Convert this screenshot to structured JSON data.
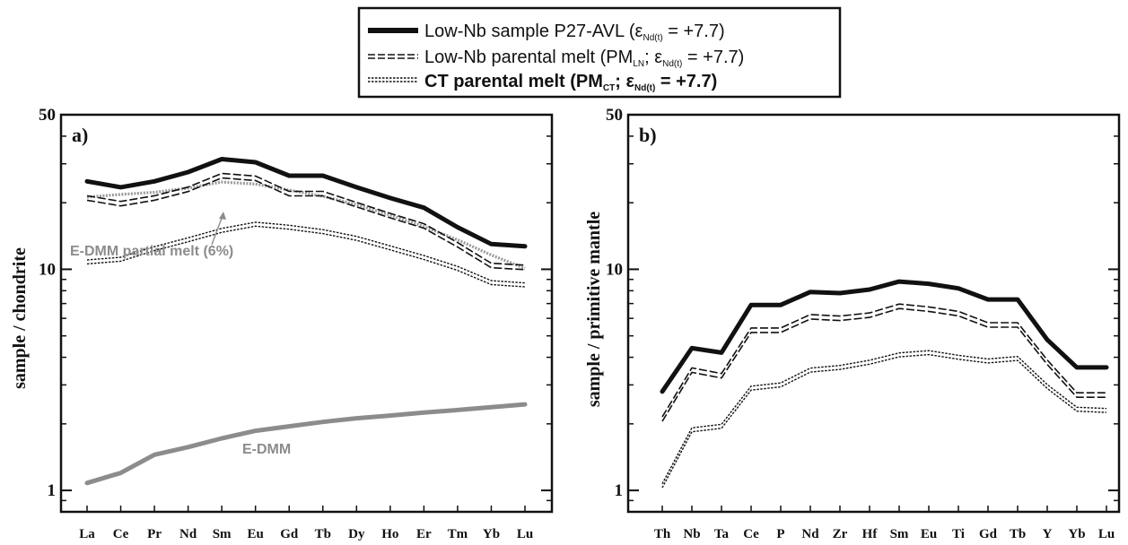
{
  "legend": {
    "entries": [
      {
        "series": "p27",
        "pre": "Low-Nb sample P27-AVL (ε",
        "sub1": "Nd(t)",
        "post": " = +7.7)",
        "bold": false
      },
      {
        "series": "pm_ln",
        "pre": "Low-Nb parental melt (PM",
        "sub1": "LN",
        "mid": "; ε",
        "sub2": "Nd(t)",
        "post": " = +7.7)",
        "bold": false
      },
      {
        "series": "pm_ct",
        "pre": "CT parental melt (PM",
        "sub1": "CT",
        "mid": "; ε",
        "sub2": "Nd(t)",
        "post": " = +7.7)",
        "bold": true
      }
    ]
  },
  "chart_data": [
    {
      "panel": "a)",
      "type": "line",
      "ylabel": "sample / chondrite",
      "yscale": "log",
      "ylim": [
        0.8,
        50
      ],
      "ytick_labels": [
        "1",
        "10",
        "50"
      ],
      "ytick_values": [
        1,
        10,
        50
      ],
      "categories": [
        "La",
        "Ce",
        "Pr",
        "Nd",
        "Sm",
        "Eu",
        "Gd",
        "Tb",
        "Dy",
        "Ho",
        "Er",
        "Tm",
        "Yb",
        "Lu"
      ],
      "series": [
        {
          "key": "p27",
          "style": "solid-black",
          "values": [
            25.0,
            23.5,
            25.0,
            27.5,
            31.5,
            30.5,
            26.5,
            26.5,
            23.5,
            21.0,
            19.0,
            15.5,
            13.0,
            12.7
          ]
        },
        {
          "key": "pm_ln",
          "style": "double-dashed",
          "values": [
            21.0,
            19.8,
            21.0,
            23.0,
            26.5,
            25.8,
            22.0,
            22.0,
            19.6,
            17.5,
            15.7,
            12.9,
            10.4,
            10.2
          ]
        },
        {
          "key": "pm_ct",
          "style": "double-dotted",
          "values": [
            10.8,
            11.1,
            12.4,
            13.6,
            15.0,
            16.0,
            15.5,
            14.8,
            13.8,
            12.5,
            11.3,
            10.1,
            8.7,
            8.5
          ]
        },
        {
          "key": "edmm_melt",
          "style": "gray-dotted",
          "label": "E-DMM partial melt (6%)",
          "values": [
            21.2,
            21.8,
            22.3,
            23.3,
            24.8,
            24.3,
            22.8,
            21.4,
            19.6,
            17.6,
            15.6,
            13.6,
            11.6,
            10.1
          ]
        },
        {
          "key": "edmm",
          "style": "gray-solid",
          "label": "E-DMM",
          "values": [
            1.08,
            1.2,
            1.45,
            1.57,
            1.72,
            1.86,
            1.95,
            2.04,
            2.12,
            2.18,
            2.25,
            2.31,
            2.38,
            2.45
          ]
        }
      ]
    },
    {
      "panel": "b)",
      "type": "line",
      "ylabel": "sample / primitive mantle",
      "yscale": "log",
      "ylim": [
        0.8,
        50
      ],
      "ytick_labels": [
        "1",
        "10",
        "50"
      ],
      "ytick_values": [
        1,
        10,
        50
      ],
      "categories": [
        "Th",
        "Nb",
        "Ta",
        "Ce",
        "P",
        "Nd",
        "Zr",
        "Hf",
        "Sm",
        "Eu",
        "Ti",
        "Gd",
        "Tb",
        "Y",
        "Yb",
        "Lu"
      ],
      "series": [
        {
          "key": "p27",
          "style": "solid-black",
          "values": [
            2.8,
            4.4,
            4.2,
            6.9,
            6.9,
            7.9,
            7.8,
            8.1,
            8.8,
            8.6,
            8.2,
            7.3,
            7.3,
            4.8,
            3.6,
            3.6
          ]
        },
        {
          "key": "pm_ln",
          "style": "double-dashed",
          "values": [
            2.1,
            3.5,
            3.3,
            5.3,
            5.3,
            6.1,
            6.0,
            6.2,
            6.8,
            6.6,
            6.3,
            5.6,
            5.6,
            3.8,
            2.7,
            2.7
          ]
        },
        {
          "key": "pm_ct",
          "style": "double-dotted",
          "values": [
            1.05,
            1.88,
            1.95,
            2.9,
            3.0,
            3.5,
            3.6,
            3.8,
            4.1,
            4.2,
            4.0,
            3.85,
            3.95,
            2.95,
            2.33,
            2.3
          ]
        }
      ]
    }
  ]
}
